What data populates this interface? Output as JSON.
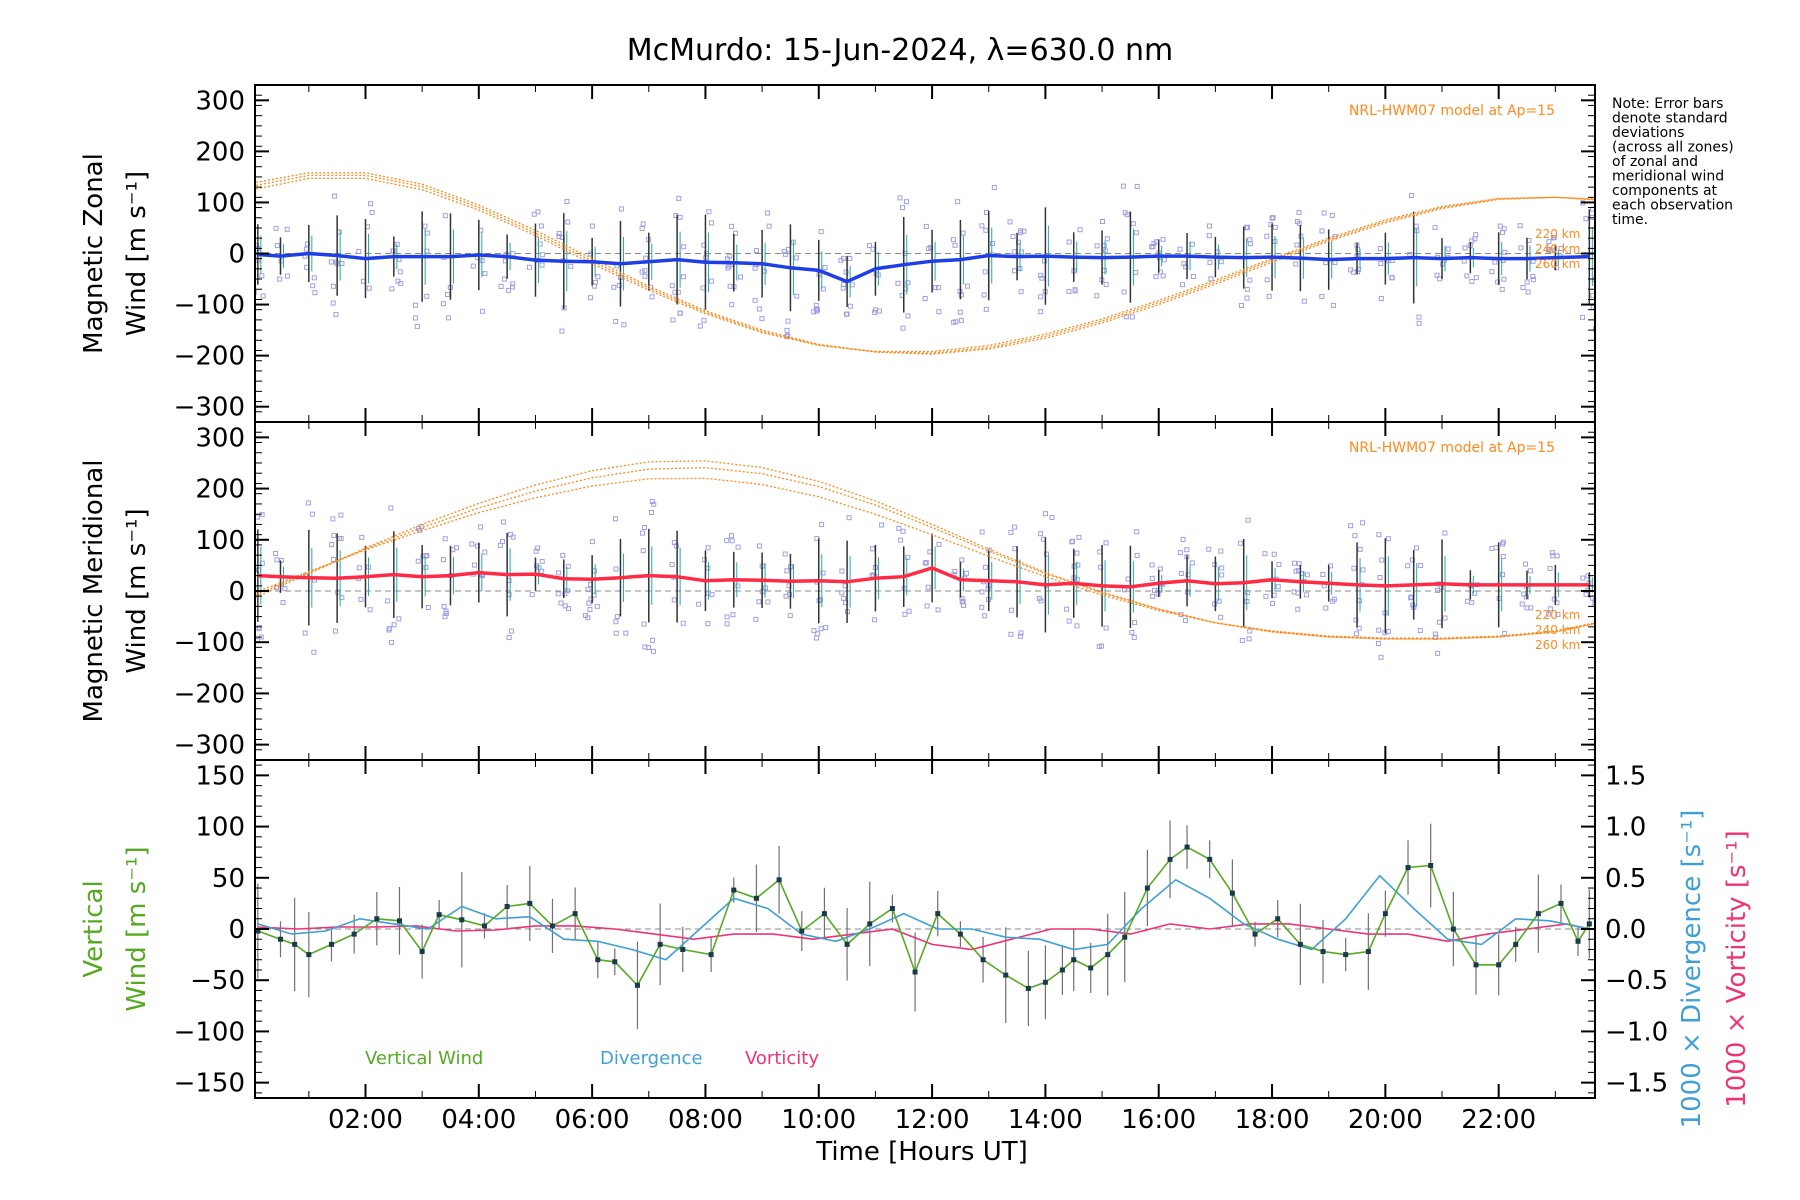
{
  "title": "McMurdo: 15-Jun-2024, λ=630.0 nm",
  "note": "Note: Error bars denote standard deviations (across all zones) of zonal and meridional wind components at each observation time.",
  "note_lines": [
    "Note: Error bars",
    "denote standard",
    "deviations",
    "(across all zones)",
    "of zonal and",
    "meridional wind",
    "components at",
    "each observation",
    "time."
  ],
  "xaxis": {
    "label": "Time [Hours UT]",
    "range": [
      0.05,
      23.7
    ],
    "ticks": [
      2,
      4,
      6,
      8,
      10,
      12,
      14,
      16,
      18,
      20,
      22
    ],
    "tick_labels": [
      "02:00",
      "04:00",
      "06:00",
      "08:00",
      "10:00",
      "12:00",
      "14:00",
      "16:00",
      "18:00",
      "20:00",
      "22:00"
    ]
  },
  "colors": {
    "zonal": "#1f3fe6",
    "meridional": "#ff2a44",
    "model": "#ff8a1e",
    "scatter": "#9f9fe6",
    "vertical": "#55aa22",
    "divergence": "#3fa0d6",
    "vorticity": "#ee3377",
    "errorbar": "#707070"
  },
  "chart_data": [
    {
      "type": "line",
      "panel": "zonal",
      "ylabel_line1": "Magnetic Zonal",
      "ylabel_line2": "Wind [m s⁻¹]",
      "ylim": [
        -330,
        330
      ],
      "yticks": [
        -300,
        -200,
        -100,
        0,
        100,
        200,
        300
      ],
      "ytick_labels": [
        "−300",
        "−200",
        "−100",
        "0",
        "100",
        "200",
        "300"
      ],
      "model_label": "NRL-HWM07 model at Ap=15",
      "altitude_labels": [
        "220 km",
        "240 km",
        "260 km"
      ],
      "model_curves": [
        {
          "name": "220 km",
          "x": [
            0,
            1,
            2,
            3,
            4,
            5,
            6,
            7,
            8,
            9,
            10,
            11,
            12,
            13,
            14,
            15,
            16,
            17,
            18,
            19,
            20,
            21,
            22,
            23,
            23.7
          ],
          "y": [
            125,
            147,
            147,
            125,
            85,
            35,
            -20,
            -72,
            -118,
            -155,
            -180,
            -192,
            -192,
            -180,
            -158,
            -128,
            -92,
            -52,
            -10,
            30,
            66,
            92,
            108,
            110,
            105
          ]
        },
        {
          "name": "240 km",
          "x": [
            0,
            1,
            2,
            3,
            4,
            5,
            6,
            7,
            8,
            9,
            10,
            11,
            12,
            13,
            14,
            15,
            16,
            17,
            18,
            19,
            20,
            21,
            22,
            23,
            23.7
          ],
          "y": [
            132,
            153,
            153,
            131,
            90,
            40,
            -15,
            -68,
            -115,
            -153,
            -179,
            -193,
            -195,
            -184,
            -162,
            -132,
            -96,
            -56,
            -13,
            27,
            63,
            90,
            107,
            110,
            106
          ]
        },
        {
          "name": "260 km",
          "x": [
            0,
            1,
            2,
            3,
            4,
            5,
            6,
            7,
            8,
            9,
            10,
            11,
            12,
            13,
            14,
            15,
            16,
            17,
            18,
            19,
            20,
            21,
            22,
            23,
            23.7
          ],
          "y": [
            138,
            158,
            158,
            136,
            95,
            45,
            -10,
            -64,
            -112,
            -150,
            -178,
            -193,
            -197,
            -187,
            -166,
            -136,
            -100,
            -60,
            -17,
            24,
            60,
            88,
            106,
            110,
            107
          ]
        }
      ],
      "series": [
        {
          "name": "Magnetic Zonal Wind",
          "x": [
            0.1,
            0.5,
            1,
            1.5,
            2,
            2.5,
            3,
            3.5,
            4,
            4.5,
            5,
            5.5,
            6,
            6.5,
            7,
            7.5,
            8,
            8.5,
            9,
            9.5,
            10,
            10.5,
            11,
            11.5,
            12,
            12.5,
            13,
            13.5,
            14,
            14.5,
            15,
            15.5,
            16,
            16.5,
            17,
            17.5,
            18,
            18.5,
            19,
            19.5,
            20,
            20.5,
            21,
            21.5,
            22,
            22.5,
            23,
            23.6
          ],
          "y": [
            -2,
            -5,
            0,
            -4,
            -10,
            -6,
            -6,
            -6,
            -3,
            -6,
            -13,
            -15,
            -16,
            -20,
            -16,
            -12,
            -17,
            -18,
            -20,
            -28,
            -33,
            -55,
            -30,
            -22,
            -15,
            -12,
            -4,
            -6,
            -5,
            -7,
            -8,
            -7,
            -5,
            -5,
            -7,
            -8,
            -7,
            -9,
            -12,
            -10,
            -10,
            -8,
            -10,
            -8,
            -10,
            -10,
            -8,
            -6
          ]
        }
      ]
    },
    {
      "type": "line",
      "panel": "meridional",
      "ylabel_line1": "Magnetic Meridional",
      "ylabel_line2": "Wind [m s⁻¹]",
      "ylim": [
        -330,
        330
      ],
      "yticks": [
        -300,
        -200,
        -100,
        0,
        100,
        200,
        300
      ],
      "ytick_labels": [
        "−300",
        "−200",
        "−100",
        "0",
        "100",
        "200",
        "300"
      ],
      "model_label": "NRL-HWM07 model at Ap=15",
      "altitude_labels": [
        "220 km",
        "240 km",
        "260 km"
      ],
      "model_curves": [
        {
          "name": "220 km",
          "x": [
            0,
            1,
            2,
            3,
            4,
            5,
            6,
            7,
            8,
            9,
            10,
            11,
            12,
            13,
            14,
            15,
            16,
            17,
            18,
            19,
            20,
            21,
            22,
            23,
            23.7
          ],
          "y": [
            -5,
            38,
            80,
            118,
            153,
            182,
            205,
            219,
            220,
            208,
            184,
            150,
            110,
            68,
            28,
            -8,
            -38,
            -62,
            -78,
            -88,
            -92,
            -92,
            -88,
            -78,
            -62
          ]
        },
        {
          "name": "240 km",
          "x": [
            0,
            1,
            2,
            3,
            4,
            5,
            6,
            7,
            8,
            9,
            10,
            11,
            12,
            13,
            14,
            15,
            16,
            17,
            18,
            19,
            20,
            21,
            22,
            23,
            23.7
          ],
          "y": [
            -10,
            36,
            82,
            124,
            162,
            195,
            221,
            238,
            241,
            229,
            204,
            168,
            124,
            78,
            34,
            -4,
            -36,
            -62,
            -79,
            -89,
            -93,
            -93,
            -89,
            -79,
            -63
          ]
        },
        {
          "name": "260 km",
          "x": [
            0,
            1,
            2,
            3,
            4,
            5,
            6,
            7,
            8,
            9,
            10,
            11,
            12,
            13,
            14,
            15,
            16,
            17,
            18,
            19,
            20,
            21,
            22,
            23,
            23.7
          ],
          "y": [
            -15,
            34,
            84,
            130,
            171,
            207,
            235,
            252,
            254,
            241,
            214,
            176,
            130,
            82,
            36,
            -2,
            -35,
            -62,
            -80,
            -90,
            -94,
            -94,
            -90,
            -80,
            -64
          ]
        }
      ],
      "series": [
        {
          "name": "Magnetic Meridional Wind",
          "x": [
            0.1,
            0.5,
            1,
            1.5,
            2,
            2.5,
            3,
            3.5,
            4,
            4.5,
            5,
            5.5,
            6,
            6.5,
            7,
            7.5,
            8,
            8.5,
            9,
            9.5,
            10,
            10.5,
            11,
            11.5,
            12,
            12.5,
            13,
            13.5,
            14,
            14.5,
            15,
            15.5,
            16,
            16.5,
            17,
            17.5,
            18,
            18.5,
            19,
            19.5,
            20,
            20.5,
            21,
            21.5,
            22,
            22.5,
            23,
            23.6
          ],
          "y": [
            30,
            28,
            26,
            25,
            28,
            32,
            28,
            30,
            36,
            32,
            33,
            24,
            23,
            26,
            30,
            28,
            20,
            22,
            21,
            19,
            20,
            18,
            25,
            28,
            45,
            22,
            20,
            18,
            12,
            15,
            10,
            8,
            15,
            20,
            14,
            16,
            22,
            18,
            15,
            12,
            10,
            12,
            14,
            12,
            12,
            12,
            12,
            12
          ]
        }
      ]
    },
    {
      "type": "line",
      "panel": "vertical",
      "ylabel_line1": "Vertical",
      "ylabel_line2": "Wind [m s⁻¹]",
      "ylim": [
        -165,
        165
      ],
      "yticks": [
        -150,
        -100,
        -50,
        0,
        50,
        100,
        150
      ],
      "ytick_labels": [
        "−150",
        "−100",
        "−50",
        "0",
        "50",
        "100",
        "150"
      ],
      "y2label_div": "1000 × Divergence [s⁻¹]",
      "y2label_vor": "1000 × Vorticity [s⁻¹]",
      "y2lim": [
        -1.65,
        1.65
      ],
      "y2ticks": [
        -1.5,
        -1.0,
        -0.5,
        0.0,
        0.5,
        1.0,
        1.5
      ],
      "y2tick_labels": [
        "−1.5",
        "−1.0",
        "−0.5",
        "0.0",
        "0.5",
        "1.0",
        "1.5"
      ],
      "legend": [
        "Vertical Wind",
        "Divergence",
        "Vorticity"
      ],
      "series": [
        {
          "name": "Vertical Wind",
          "axis": "left",
          "x": [
            0.1,
            0.5,
            0.75,
            1,
            1.4,
            1.8,
            2.2,
            2.6,
            3,
            3.3,
            3.7,
            4.1,
            4.5,
            4.9,
            5.3,
            5.7,
            6.1,
            6.4,
            6.8,
            7.2,
            7.6,
            8.1,
            8.5,
            8.9,
            9.3,
            9.7,
            10.1,
            10.5,
            10.9,
            11.3,
            11.7,
            12.1,
            12.5,
            12.9,
            13.3,
            13.7,
            14,
            14.3,
            14.5,
            14.8,
            15.1,
            15.4,
            15.8,
            16.2,
            16.5,
            16.9,
            17.3,
            17.7,
            18.1,
            18.5,
            18.9,
            19.3,
            19.7,
            20,
            20.4,
            20.8,
            21.2,
            21.6,
            22,
            22.3,
            22.7,
            23.1,
            23.4,
            23.6
          ],
          "y": [
            -2,
            -10,
            -15,
            -25,
            -15,
            -5,
            10,
            8,
            -22,
            14,
            9,
            3,
            22,
            25,
            3,
            15,
            -30,
            -32,
            -55,
            -15,
            -20,
            -25,
            38,
            30,
            48,
            -2,
            15,
            -15,
            5,
            20,
            -42,
            15,
            -5,
            -30,
            -45,
            -58,
            -52,
            -40,
            -30,
            -38,
            -25,
            -8,
            40,
            68,
            80,
            68,
            35,
            -5,
            10,
            -15,
            -22,
            -25,
            -22,
            15,
            60,
            62,
            0,
            -35,
            -35,
            -15,
            15,
            25,
            -12,
            5
          ]
        },
        {
          "name": "Divergence",
          "axis": "right",
          "x": [
            0.1,
            0.7,
            1.3,
            1.9,
            2.5,
            3.1,
            3.7,
            4.3,
            4.9,
            5.5,
            6.1,
            6.7,
            7.3,
            7.9,
            8.5,
            9.1,
            9.7,
            10.3,
            10.9,
            11.5,
            12.1,
            12.7,
            13.3,
            13.9,
            14.5,
            15.1,
            15.7,
            16.3,
            16.9,
            17.5,
            18.1,
            18.7,
            19.3,
            19.9,
            20.5,
            21.1,
            21.7,
            22.3,
            22.9,
            23.6
          ],
          "y": [
            0.05,
            -0.05,
            -0.02,
            0.1,
            0.05,
            0.0,
            0.22,
            0.1,
            0.12,
            -0.1,
            -0.12,
            -0.2,
            -0.3,
            0.0,
            0.3,
            0.2,
            -0.05,
            -0.12,
            0.0,
            0.15,
            0.0,
            0.0,
            -0.08,
            -0.1,
            -0.2,
            -0.15,
            0.2,
            0.48,
            0.3,
            0.05,
            -0.1,
            -0.2,
            0.1,
            0.52,
            0.2,
            -0.1,
            -0.15,
            0.1,
            0.08,
            0.0
          ]
        },
        {
          "name": "Vorticity",
          "axis": "right",
          "x": [
            0.1,
            0.8,
            1.5,
            2.2,
            2.9,
            3.6,
            4.3,
            5,
            5.7,
            6.4,
            7.1,
            7.8,
            8.5,
            9.2,
            9.9,
            10.6,
            11.3,
            12,
            12.7,
            13.4,
            14.1,
            14.8,
            15.5,
            16.2,
            16.9,
            17.6,
            18.3,
            19,
            19.7,
            20.4,
            21.1,
            21.8,
            22.5,
            23.2,
            23.6
          ],
          "y": [
            0.02,
            0.0,
            0.02,
            0.02,
            0.03,
            -0.02,
            -0.01,
            0.03,
            0.03,
            0.0,
            -0.05,
            -0.1,
            -0.05,
            -0.05,
            -0.1,
            -0.05,
            0.0,
            -0.15,
            -0.2,
            -0.1,
            0.0,
            0.0,
            -0.05,
            0.05,
            0.0,
            0.05,
            0.05,
            0.0,
            -0.05,
            -0.05,
            -0.12,
            -0.05,
            0.0,
            0.05,
            0.0
          ]
        }
      ]
    }
  ]
}
